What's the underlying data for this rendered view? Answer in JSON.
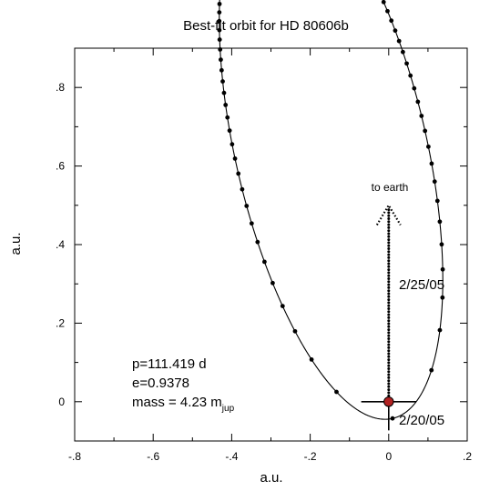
{
  "chart_data": {
    "type": "scatter",
    "title": "Best-fit orbit for HD 80606b",
    "xlabel": "a.u.",
    "ylabel": "a.u.",
    "xlim": [
      -0.8,
      0.2
    ],
    "ylim": [
      -0.1,
      0.9
    ],
    "x_ticks": [
      {
        "value": -0.8,
        "label": "-.8"
      },
      {
        "value": -0.6,
        "label": "-.6"
      },
      {
        "value": -0.4,
        "label": "-.4"
      },
      {
        "value": -0.2,
        "label": "-.2"
      },
      {
        "value": 0.0,
        "label": "0"
      },
      {
        "value": 0.2,
        "label": ".2"
      }
    ],
    "y_ticks": [
      {
        "value": 0.0,
        "label": "0"
      },
      {
        "value": 0.2,
        "label": ".2"
      },
      {
        "value": 0.4,
        "label": ".4"
      },
      {
        "value": 0.6,
        "label": ".6"
      },
      {
        "value": 0.8,
        "label": ".8"
      }
    ],
    "grid": false,
    "orbit": {
      "period_days": 111.419,
      "eccentricity": 0.9378,
      "star_position": [
        0.0,
        0.0
      ],
      "periastron_direction": [
        0.223,
        -0.975
      ],
      "points_per_orbit": 111
    },
    "star_color": "#b22222",
    "annotations": {
      "to_earth": "to earth",
      "date_upper": "2/25/05",
      "date_lower": "2/20/05",
      "params": {
        "period": "p=111.419 d",
        "ecc": "e=0.9378",
        "mass_prefix": "mass = 4.23 m",
        "mass_sub": "jup"
      }
    }
  }
}
